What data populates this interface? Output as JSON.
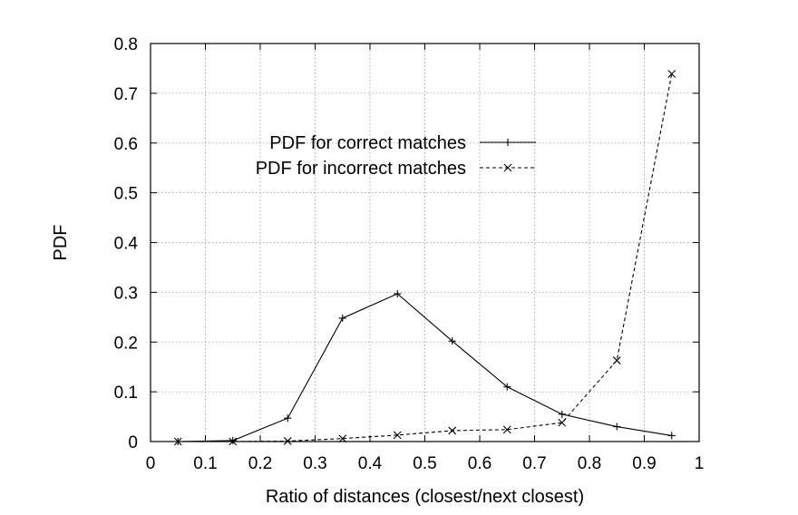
{
  "chart_data": {
    "type": "line",
    "title": "",
    "xlabel": "Ratio of distances (closest/next closest)",
    "ylabel": "PDF",
    "xlim": [
      0,
      1
    ],
    "ylim": [
      0,
      0.8
    ],
    "x_ticks": [
      "0",
      "0.1",
      "0.2",
      "0.3",
      "0.4",
      "0.5",
      "0.6",
      "0.7",
      "0.8",
      "0.9",
      "1"
    ],
    "y_ticks": [
      "0",
      "0.1",
      "0.2",
      "0.3",
      "0.4",
      "0.5",
      "0.6",
      "0.7",
      "0.8"
    ],
    "grid": true,
    "legend_position": "upper-left",
    "series": [
      {
        "name": "PDF for correct matches",
        "line_style": "solid",
        "marker": "plus",
        "color": "#000000",
        "x": [
          0.05,
          0.15,
          0.25,
          0.35,
          0.45,
          0.55,
          0.65,
          0.75,
          0.85,
          0.95
        ],
        "y": [
          0.0,
          0.002,
          0.047,
          0.248,
          0.297,
          0.202,
          0.11,
          0.055,
          0.03,
          0.012
        ]
      },
      {
        "name": "PDF for incorrect matches",
        "line_style": "dashed",
        "marker": "cross",
        "color": "#000000",
        "x": [
          0.05,
          0.15,
          0.25,
          0.35,
          0.45,
          0.55,
          0.65,
          0.75,
          0.85,
          0.95
        ],
        "y": [
          0.0,
          0.0,
          0.001,
          0.006,
          0.013,
          0.022,
          0.024,
          0.038,
          0.163,
          0.739
        ]
      }
    ]
  }
}
